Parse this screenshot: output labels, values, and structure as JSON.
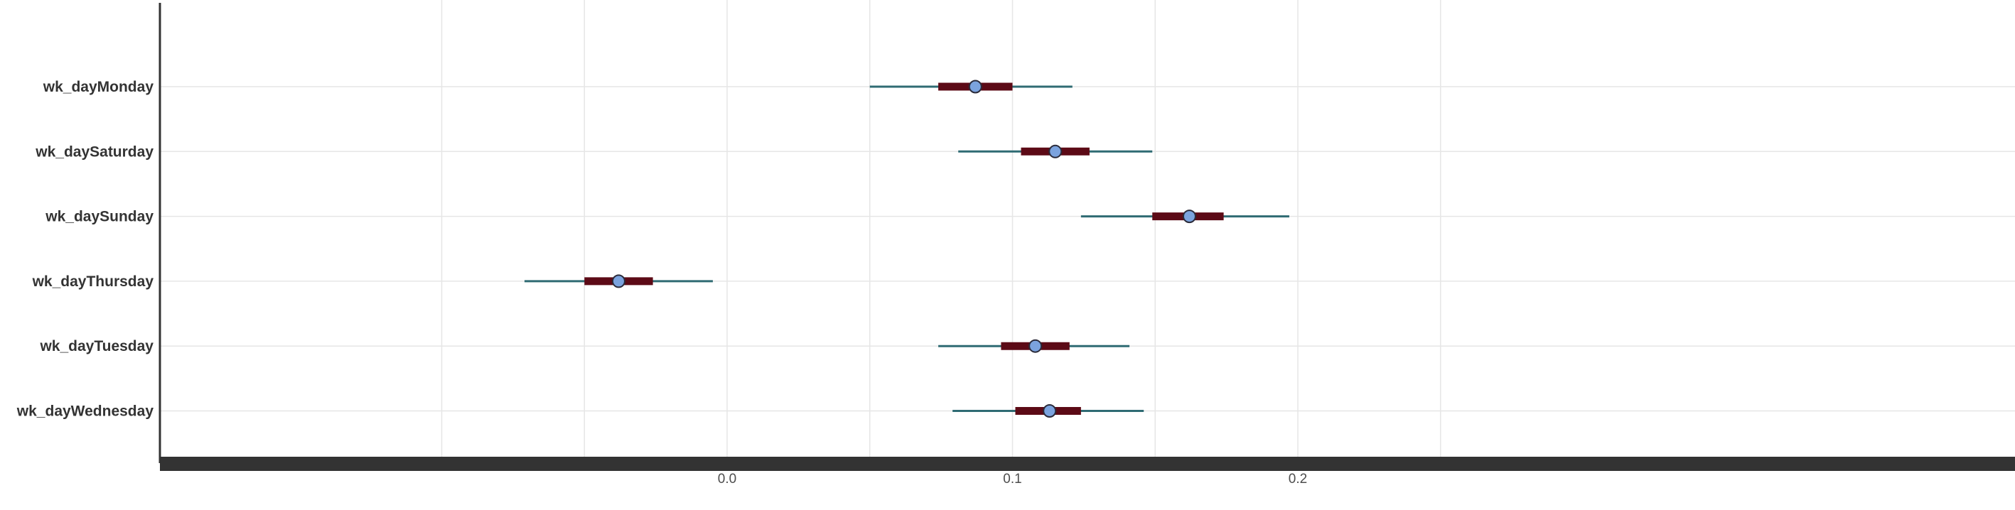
{
  "chart_data": {
    "type": "forest",
    "title": "",
    "xlabel": "",
    "ylabel": "",
    "xlim": [
      -0.2,
      0.25
    ],
    "x_ticks": [
      0.0,
      0.1,
      0.2
    ],
    "x_tick_labels": [
      "0.0",
      "0.1",
      "0.2"
    ],
    "grid": true,
    "colors": {
      "thin_interval": "#2f6b73",
      "thick_interval": "#5c0a16",
      "point_fill": "#7ba3de",
      "point_stroke": "#2b2b3a",
      "grid": "#e6e6e6",
      "axis": "#333333"
    },
    "series": [
      {
        "label": "wk_dayMonday",
        "point": 0.087,
        "inner": [
          0.074,
          0.1
        ],
        "outer": [
          0.05,
          0.121
        ]
      },
      {
        "label": "wk_daySaturday",
        "point": 0.115,
        "inner": [
          0.103,
          0.127
        ],
        "outer": [
          0.081,
          0.149
        ]
      },
      {
        "label": "wk_daySunday",
        "point": 0.162,
        "inner": [
          0.149,
          0.174
        ],
        "outer": [
          0.124,
          0.197
        ]
      },
      {
        "label": "wk_dayThursday",
        "point": -0.038,
        "inner": [
          -0.05,
          -0.026
        ],
        "outer": [
          -0.071,
          -0.005
        ]
      },
      {
        "label": "wk_dayTuesday",
        "point": 0.108,
        "inner": [
          0.096,
          0.12
        ],
        "outer": [
          0.074,
          0.141
        ]
      },
      {
        "label": "wk_dayWednesday",
        "point": 0.113,
        "inner": [
          0.101,
          0.124
        ],
        "outer": [
          0.079,
          0.146
        ]
      }
    ]
  }
}
